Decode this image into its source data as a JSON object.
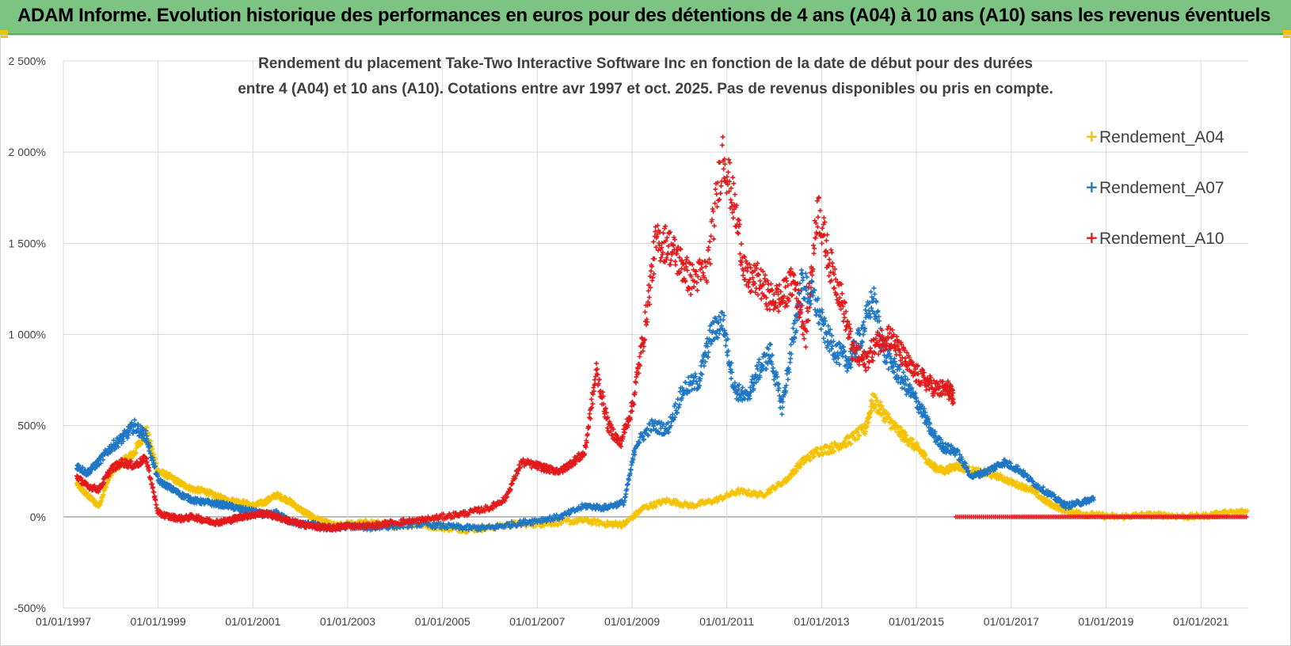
{
  "banner": {
    "title": "ADAM Informe. Evolution historique des performances en euros pour des détentions de 4 ans (A04) à 10 ans (A10) sans les revenus éventuels"
  },
  "chart_data": {
    "type": "scatter",
    "title_line1": "Rendement du placement Take-Two Interactive Software Inc en fonction de la date de début pour des durées",
    "title_line2": "entre 4 (A04) et 10 ans (A10).  Cotations entre avr 1997 et oct. 2025. Pas de revenus disponibles ou pris en compte.",
    "ylim": [
      -500,
      2500
    ],
    "yticks": [
      -500,
      0,
      500,
      1000,
      1500,
      2000,
      2500
    ],
    "ytick_labels": [
      "-500%",
      "0%",
      "500%",
      "1 000%",
      "1 500%",
      "2 000%",
      "2 500%"
    ],
    "xlim": [
      "1997-01-01",
      "2022-01-01"
    ],
    "xtick_labels": [
      "01/01/1997",
      "01/01/1999",
      "01/01/2001",
      "01/01/2003",
      "01/01/2005",
      "01/01/2007",
      "01/01/2009",
      "01/01/2011",
      "01/01/2013",
      "01/01/2015",
      "01/01/2017",
      "01/01/2019",
      "01/01/2021"
    ],
    "xtick_dates": [
      "1997-01-01",
      "1999-01-01",
      "2001-01-01",
      "2003-01-01",
      "2005-01-01",
      "2007-01-01",
      "2009-01-01",
      "2011-01-01",
      "2013-01-01",
      "2015-01-01",
      "2017-01-01",
      "2019-01-01",
      "2021-01-01"
    ],
    "grid": true,
    "legend_position": "right",
    "series": [
      {
        "name": "Rendement_A04",
        "color": "#f5c200",
        "x": [
          "1997-04-15",
          "1997-07-01",
          "1997-10-01",
          "1998-01-01",
          "1998-04-01",
          "1998-07-01",
          "1998-10-01",
          "1999-01-01",
          "1999-04-01",
          "1999-07-01",
          "1999-10-01",
          "2000-01-01",
          "2000-04-01",
          "2000-07-01",
          "2000-10-01",
          "2001-01-01",
          "2001-04-01",
          "2001-07-01",
          "2001-10-01",
          "2002-01-01",
          "2002-04-01",
          "2002-07-01",
          "2002-10-01",
          "2003-01-01",
          "2003-07-01",
          "2004-01-01",
          "2004-07-01",
          "2005-01-01",
          "2005-07-01",
          "2006-01-01",
          "2006-07-01",
          "2007-01-01",
          "2007-07-01",
          "2008-01-01",
          "2008-07-01",
          "2008-11-01",
          "2009-04-01",
          "2009-10-01",
          "2010-04-01",
          "2010-10-01",
          "2011-04-01",
          "2011-10-01",
          "2012-04-01",
          "2012-08-01",
          "2012-12-01",
          "2013-04-01",
          "2013-08-01",
          "2013-12-01",
          "2014-02-01",
          "2014-05-01",
          "2014-08-01",
          "2014-11-01",
          "2015-02-01",
          "2015-05-01",
          "2015-08-01",
          "2015-11-01",
          "2016-02-01",
          "2016-06-01",
          "2016-10-01",
          "2017-02-01",
          "2017-06-01",
          "2017-10-01",
          "2018-02-01",
          "2018-06-01",
          "2018-10-01",
          "2019-04-01",
          "2019-10-01",
          "2020-04-01",
          "2020-10-01",
          "2021-04-01",
          "2021-07-01",
          "2021-12-31"
        ],
        "y": [
          180,
          120,
          60,
          240,
          300,
          350,
          480,
          250,
          220,
          180,
          150,
          140,
          110,
          90,
          80,
          60,
          80,
          120,
          90,
          40,
          0,
          -30,
          -50,
          -40,
          -30,
          -50,
          -40,
          -60,
          -70,
          -60,
          -40,
          -40,
          -30,
          -20,
          -40,
          -40,
          50,
          90,
          60,
          90,
          140,
          120,
          200,
          300,
          360,
          380,
          420,
          480,
          640,
          560,
          480,
          420,
          360,
          280,
          250,
          280,
          260,
          240,
          220,
          180,
          150,
          80,
          40,
          20,
          10,
          0,
          10,
          10,
          0,
          10,
          20,
          30
        ]
      },
      {
        "name": "Rendement_A07",
        "color": "#1f77c4",
        "x": [
          "1997-04-15",
          "1997-07-01",
          "1997-10-01",
          "1998-01-01",
          "1998-04-01",
          "1998-07-01",
          "1998-10-01",
          "1999-01-01",
          "1999-04-01",
          "1999-07-01",
          "1999-10-01",
          "2000-01-01",
          "2000-04-01",
          "2000-07-01",
          "2000-10-01",
          "2001-01-01",
          "2001-04-01",
          "2001-07-01",
          "2001-10-01",
          "2002-01-01",
          "2002-04-01",
          "2002-07-01",
          "2002-10-01",
          "2003-01-01",
          "2003-07-01",
          "2004-01-01",
          "2004-07-01",
          "2005-01-01",
          "2005-07-01",
          "2006-01-01",
          "2006-07-01",
          "2007-01-01",
          "2007-07-01",
          "2008-01-01",
          "2008-06-01",
          "2008-11-01",
          "2009-02-01",
          "2009-06-01",
          "2009-10-01",
          "2010-02-01",
          "2010-06-01",
          "2010-09-01",
          "2010-12-01",
          "2011-03-01",
          "2011-06-01",
          "2011-09-01",
          "2011-12-01",
          "2012-03-01",
          "2012-06-01",
          "2012-08-01",
          "2012-11-01",
          "2013-02-01",
          "2013-05-01",
          "2013-08-01",
          "2013-11-01",
          "2014-02-01",
          "2014-05-01",
          "2014-08-01",
          "2014-11-01",
          "2015-02-01",
          "2015-05-01",
          "2015-08-01",
          "2015-11-01",
          "2016-03-01",
          "2016-07-01",
          "2016-11-01",
          "2017-03-01",
          "2017-07-01",
          "2017-11-01",
          "2018-03-01",
          "2018-07-01",
          "2018-10-01"
        ],
        "y": [
          280,
          240,
          300,
          380,
          430,
          500,
          440,
          200,
          160,
          120,
          90,
          80,
          70,
          60,
          40,
          30,
          10,
          20,
          -20,
          -40,
          -40,
          -60,
          -60,
          -50,
          -60,
          -50,
          -40,
          -50,
          -60,
          -60,
          -40,
          -20,
          0,
          60,
          50,
          80,
          400,
          500,
          480,
          700,
          750,
          1000,
          1080,
          700,
          650,
          800,
          900,
          600,
          1000,
          1280,
          1200,
          1000,
          900,
          850,
          1000,
          1200,
          900,
          800,
          700,
          600,
          460,
          380,
          360,
          220,
          250,
          300,
          260,
          180,
          120,
          60,
          80,
          100
        ]
      },
      {
        "name": "Rendement_A10",
        "color": "#e31a1c",
        "x": [
          "1997-04-15",
          "1997-07-01",
          "1997-10-01",
          "1998-01-01",
          "1998-04-01",
          "1998-07-01",
          "1998-10-01",
          "1999-01-01",
          "1999-04-01",
          "1999-07-01",
          "1999-10-01",
          "2000-01-01",
          "2000-04-01",
          "2000-07-01",
          "2000-10-01",
          "2001-01-01",
          "2001-04-01",
          "2001-07-01",
          "2001-10-01",
          "2002-01-01",
          "2002-04-01",
          "2002-07-01",
          "2002-10-01",
          "2003-01-01",
          "2003-07-01",
          "2004-01-01",
          "2004-07-01",
          "2005-01-01",
          "2005-07-01",
          "2006-01-01",
          "2006-05-01",
          "2006-09-01",
          "2007-01-01",
          "2007-04-01",
          "2007-07-01",
          "2007-10-01",
          "2008-01-01",
          "2008-04-01",
          "2008-07-01",
          "2008-10-01",
          "2009-01-01",
          "2009-04-01",
          "2009-07-01",
          "2009-10-01",
          "2010-01-01",
          "2010-04-01",
          "2010-08-01",
          "2010-12-01",
          "2011-03-01",
          "2011-06-01",
          "2011-09-01",
          "2011-12-01",
          "2012-03-01",
          "2012-06-01",
          "2012-09-01",
          "2012-12-01",
          "2013-03-01",
          "2013-06-01",
          "2013-09-01",
          "2013-12-01",
          "2014-03-01",
          "2014-06-01",
          "2014-09-01",
          "2014-12-01",
          "2015-03-01",
          "2015-06-01",
          "2015-09-01",
          "2015-10-15"
        ],
        "y": [
          220,
          170,
          150,
          260,
          300,
          280,
          320,
          20,
          0,
          -10,
          0,
          -20,
          -30,
          -20,
          0,
          10,
          20,
          0,
          -20,
          -40,
          -50,
          -60,
          -60,
          -50,
          -50,
          -30,
          -20,
          0,
          20,
          50,
          100,
          300,
          280,
          260,
          250,
          300,
          350,
          800,
          500,
          400,
          600,
          1000,
          1500,
          1500,
          1400,
          1300,
          1350,
          2000,
          1700,
          1300,
          1300,
          1200,
          1200,
          1300,
          1000,
          1700,
          1400,
          1200,
          900,
          850,
          950,
          1000,
          900,
          800,
          750,
          700,
          700,
          650
        ]
      },
      {
        "name": "Rendement_A10 (zero segment)",
        "color": "#e31a1c",
        "x": [
          "2015-11-01",
          "2017-01-01",
          "2018-01-01",
          "2019-01-01",
          "2020-01-01",
          "2021-01-01",
          "2021-12-31"
        ],
        "y": [
          0,
          0,
          0,
          0,
          0,
          0,
          0
        ]
      }
    ]
  },
  "legend": {
    "items": [
      {
        "label": "Rendement_A04",
        "color": "#f5c200",
        "marker": "+"
      },
      {
        "label": "Rendement_A07",
        "color": "#1f77c4",
        "marker": "+"
      },
      {
        "label": "Rendement_A10",
        "color": "#e31a1c",
        "marker": "+"
      }
    ]
  }
}
